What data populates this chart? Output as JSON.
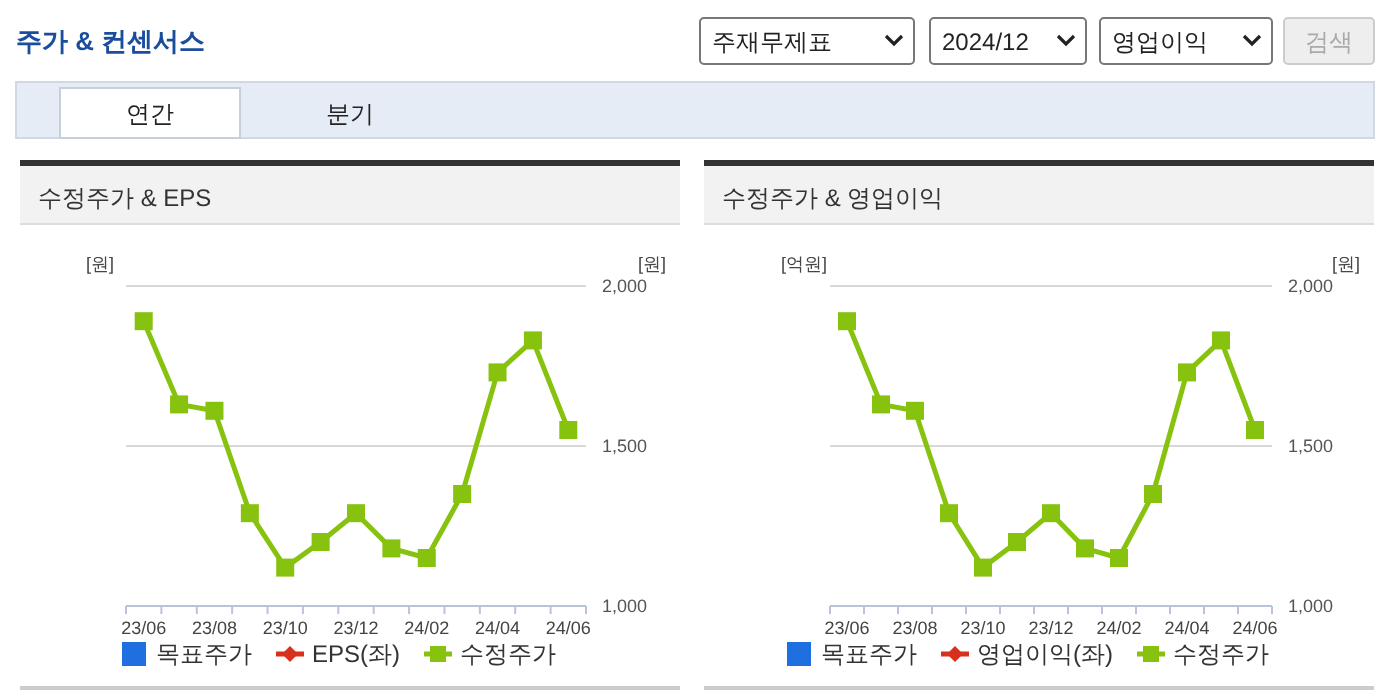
{
  "chart_data": [
    {
      "type": "other",
      "title": "주가 & 컨센서스",
      "annotations": [
        "주재무제표",
        "2024/12",
        "영업이익",
        "검색",
        "연간",
        "분기"
      ]
    },
    {
      "type": "line",
      "title": "수정주가 & EPS",
      "ylabel": "[원]",
      "y2label": "[원]",
      "categories": [
        "23/06",
        null,
        "23/08",
        null,
        "23/10",
        null,
        "23/12",
        null,
        "24/02",
        null,
        "24/04",
        null,
        "24/06"
      ],
      "series": [
        {
          "name": "목표주가",
          "type": "scatter",
          "marker": "square",
          "color": "#1f6fe0",
          "values": [
            null,
            null,
            null,
            null,
            null,
            null,
            null,
            null,
            null,
            null,
            null,
            null,
            null
          ]
        },
        {
          "name": "EPS(좌)",
          "type": "line",
          "marker": "diamond",
          "color": "#d8301c",
          "values": [
            null,
            null,
            null,
            null,
            null,
            null,
            null,
            null,
            null,
            null,
            null,
            null,
            null
          ]
        },
        {
          "name": "수정주가",
          "type": "line",
          "marker": "square",
          "axis": "y2",
          "color": "#86c20e",
          "values": [
            1890,
            1630,
            1610,
            1290,
            1120,
            1200,
            1290,
            1180,
            1150,
            1350,
            1730,
            1830,
            1550
          ]
        }
      ],
      "y2lim": [
        1000,
        2000
      ],
      "y2ticks": [
        {
          "value": 1000,
          "label": "1,000"
        },
        {
          "value": 1500,
          "label": "1,500"
        },
        {
          "value": 2000,
          "label": "2,000"
        }
      ],
      "grid": "y",
      "legend": "bottom"
    },
    {
      "type": "line",
      "title": "수정주가 & 영업이익",
      "ylabel": "[억원]",
      "y2label": "[원]",
      "categories": [
        "23/06",
        null,
        "23/08",
        null,
        "23/10",
        null,
        "23/12",
        null,
        "24/02",
        null,
        "24/04",
        null,
        "24/06"
      ],
      "series": [
        {
          "name": "목표주가",
          "type": "scatter",
          "marker": "square",
          "color": "#1f6fe0",
          "values": [
            null,
            null,
            null,
            null,
            null,
            null,
            null,
            null,
            null,
            null,
            null,
            null,
            null
          ]
        },
        {
          "name": "영업이익(좌)",
          "type": "line",
          "marker": "diamond",
          "color": "#d8301c",
          "values": [
            null,
            null,
            null,
            null,
            null,
            null,
            null,
            null,
            null,
            null,
            null,
            null,
            null
          ]
        },
        {
          "name": "수정주가",
          "type": "line",
          "marker": "square",
          "axis": "y2",
          "color": "#86c20e",
          "values": [
            1890,
            1630,
            1610,
            1290,
            1120,
            1200,
            1290,
            1180,
            1150,
            1350,
            1730,
            1830,
            1550
          ]
        }
      ],
      "y2lim": [
        1000,
        2000
      ],
      "y2ticks": [
        {
          "value": 1000,
          "label": "1,000"
        },
        {
          "value": 1500,
          "label": "1,500"
        },
        {
          "value": 2000,
          "label": "2,000"
        }
      ],
      "grid": "y",
      "legend": "bottom"
    }
  ]
}
